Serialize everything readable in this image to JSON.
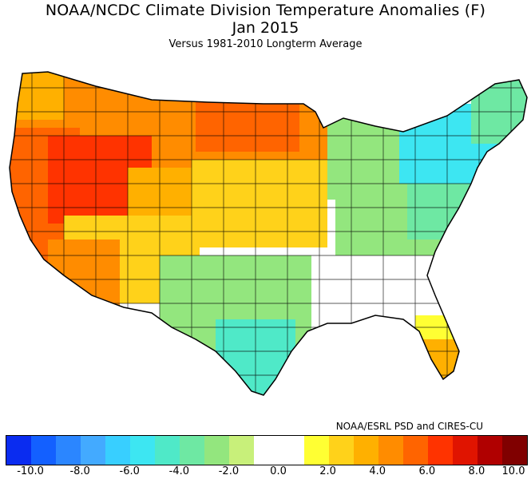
{
  "title_line1": "NOAA/NCDC Climate Division Temperature Anomalies (F)",
  "title_line2": "Jan 2015",
  "subtitle": "Versus 1981-2010 Longterm Average",
  "credit": "NOAA/ESRL PSD and CIRES-CU",
  "colorbar": {
    "colors": [
      "#0a2cf0",
      "#1360ff",
      "#2b86ff",
      "#43aaff",
      "#38cfff",
      "#3de6f2",
      "#4fe9c8",
      "#6ee8a3",
      "#93e67e",
      "#c8f07a",
      "#ffffff",
      "#ffffff",
      "#ffff33",
      "#ffd21a",
      "#ffb000",
      "#ff8c00",
      "#ff6400",
      "#ff3300",
      "#e01400",
      "#b00000",
      "#800000"
    ],
    "tick_labels": [
      "-10.0",
      "-8.0",
      "-6.0",
      "-4.0",
      "-2.0",
      "0.0",
      "2.0",
      "4.0",
      "6.0",
      "8.0",
      "10.0"
    ]
  },
  "map_regions": [
    {
      "region": "pacific-northwest",
      "color": "#ff8c00"
    },
    {
      "region": "coastal-oregon-washington",
      "color": "#ffb000"
    },
    {
      "region": "california-coast",
      "color": "#ff6400"
    },
    {
      "region": "nevada-utah",
      "color": "#ff3300"
    },
    {
      "region": "northern-plains",
      "color": "#ff8c00"
    },
    {
      "region": "north-dakota-core",
      "color": "#ff6400"
    },
    {
      "region": "wyoming-colorado",
      "color": "#ffb000"
    },
    {
      "region": "central-plains",
      "color": "#ffd21a"
    },
    {
      "region": "southwest",
      "color": "#ffd21a"
    },
    {
      "region": "southern-california",
      "color": "#ff8c00"
    },
    {
      "region": "texas-oklahoma",
      "color": "#93e67e"
    },
    {
      "region": "south-texas",
      "color": "#4fe9c8"
    },
    {
      "region": "midwest-neutral",
      "color": "#ffffff"
    },
    {
      "region": "great-lakes",
      "color": "#93e67e"
    },
    {
      "region": "ohio-valley",
      "color": "#93e67e"
    },
    {
      "region": "southeast",
      "color": "#ffffff"
    },
    {
      "region": "mid-atlantic",
      "color": "#6ee8a3"
    },
    {
      "region": "northeast",
      "color": "#3de6f2"
    },
    {
      "region": "new-england",
      "color": "#6ee8a3"
    },
    {
      "region": "florida-north",
      "color": "#ffff33"
    },
    {
      "region": "florida-south",
      "color": "#ffb000"
    }
  ]
}
